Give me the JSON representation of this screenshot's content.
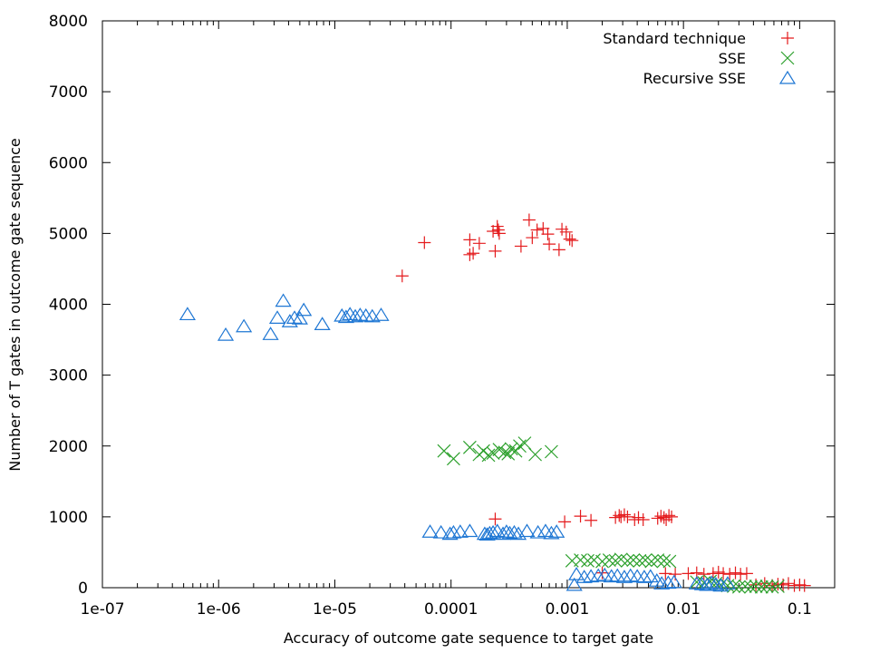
{
  "chart_data": {
    "type": "scatter",
    "title": "",
    "xlabel": "Accuracy of outcome gate sequence to target gate",
    "ylabel": "Number of T gates in outcome gate sequence",
    "xscale": "log",
    "xlim": [
      1e-07,
      0.2
    ],
    "ylim": [
      0,
      8000
    ],
    "x_ticks": [
      {
        "value": 1e-07,
        "label": "1e-07"
      },
      {
        "value": 1e-06,
        "label": "1e-06"
      },
      {
        "value": 1e-05,
        "label": "1e-05"
      },
      {
        "value": 0.0001,
        "label": "0.0001"
      },
      {
        "value": 0.001,
        "label": "0.001"
      },
      {
        "value": 0.01,
        "label": "0.01"
      },
      {
        "value": 0.1,
        "label": "0.1"
      }
    ],
    "y_ticks": [
      {
        "value": 0,
        "label": "0"
      },
      {
        "value": 1000,
        "label": "1000"
      },
      {
        "value": 2000,
        "label": "2000"
      },
      {
        "value": 3000,
        "label": "3000"
      },
      {
        "value": 4000,
        "label": "4000"
      },
      {
        "value": 5000,
        "label": "5000"
      },
      {
        "value": 6000,
        "label": "6000"
      },
      {
        "value": 7000,
        "label": "7000"
      },
      {
        "value": 8000,
        "label": "8000"
      }
    ],
    "legend_position": "top-right",
    "grid": false,
    "series": [
      {
        "name": "Standard technique",
        "marker": "plus",
        "color": "#e41a1c",
        "points": [
          [
            3.8e-05,
            4400
          ],
          [
            5.9e-05,
            4870
          ],
          [
            0.000145,
            4700
          ],
          [
            0.000155,
            4720
          ],
          [
            0.000145,
            4910
          ],
          [
            0.000175,
            4860
          ],
          [
            0.00023,
            5030
          ],
          [
            0.00024,
            4750
          ],
          [
            0.00025,
            5100
          ],
          [
            0.000255,
            5050
          ],
          [
            0.00026,
            5000
          ],
          [
            0.0004,
            4820
          ],
          [
            0.00047,
            5190
          ],
          [
            0.0005,
            4940
          ],
          [
            0.00055,
            5050
          ],
          [
            0.00062,
            5070
          ],
          [
            0.00068,
            4990
          ],
          [
            0.0007,
            4850
          ],
          [
            0.00085,
            4770
          ],
          [
            0.0009,
            5060
          ],
          [
            0.00098,
            5020
          ],
          [
            0.00105,
            4920
          ],
          [
            0.0011,
            4900
          ],
          [
            0.00024,
            970
          ],
          [
            0.00095,
            930
          ],
          [
            0.0013,
            1010
          ],
          [
            0.0016,
            950
          ],
          [
            0.0026,
            990
          ],
          [
            0.0028,
            1020
          ],
          [
            0.0029,
            1000
          ],
          [
            0.0031,
            1030
          ],
          [
            0.0033,
            1000
          ],
          [
            0.0038,
            960
          ],
          [
            0.0041,
            990
          ],
          [
            0.0045,
            960
          ],
          [
            0.006,
            980
          ],
          [
            0.0064,
            1010
          ],
          [
            0.0068,
            990
          ],
          [
            0.0071,
            960
          ],
          [
            0.0075,
            1020
          ],
          [
            0.0079,
            1000
          ],
          [
            0.002,
            210
          ],
          [
            0.007,
            200
          ],
          [
            0.0085,
            190
          ],
          [
            0.011,
            200
          ],
          [
            0.013,
            210
          ],
          [
            0.015,
            190
          ],
          [
            0.018,
            200
          ],
          [
            0.02,
            220
          ],
          [
            0.022,
            200
          ],
          [
            0.025,
            190
          ],
          [
            0.028,
            210
          ],
          [
            0.031,
            190
          ],
          [
            0.035,
            200
          ],
          [
            0.042,
            40
          ],
          [
            0.05,
            60
          ],
          [
            0.058,
            30
          ],
          [
            0.065,
            50
          ],
          [
            0.072,
            40
          ],
          [
            0.08,
            60
          ],
          [
            0.09,
            30
          ],
          [
            0.1,
            40
          ],
          [
            0.11,
            30
          ]
        ]
      },
      {
        "name": "SSE",
        "marker": "cross",
        "color": "#2ca02c",
        "points": [
          [
            8.7e-05,
            1930
          ],
          [
            0.000105,
            1820
          ],
          [
            0.000145,
            1980
          ],
          [
            0.000175,
            1880
          ],
          [
            0.00019,
            1930
          ],
          [
            0.00021,
            1870
          ],
          [
            0.00023,
            1900
          ],
          [
            0.00026,
            1950
          ],
          [
            0.00029,
            1910
          ],
          [
            0.00031,
            1890
          ],
          [
            0.00033,
            1960
          ],
          [
            0.00036,
            1930
          ],
          [
            0.00039,
            2000
          ],
          [
            0.00043,
            2040
          ],
          [
            0.00053,
            1880
          ],
          [
            0.00073,
            1920
          ],
          [
            0.0011,
            380
          ],
          [
            0.0013,
            390
          ],
          [
            0.0015,
            380
          ],
          [
            0.0017,
            390
          ],
          [
            0.002,
            370
          ],
          [
            0.0023,
            390
          ],
          [
            0.0026,
            380
          ],
          [
            0.0029,
            400
          ],
          [
            0.0033,
            380
          ],
          [
            0.0037,
            390
          ],
          [
            0.0042,
            380
          ],
          [
            0.0047,
            390
          ],
          [
            0.0053,
            370
          ],
          [
            0.006,
            390
          ],
          [
            0.0068,
            380
          ],
          [
            0.0076,
            370
          ],
          [
            0.013,
            80
          ],
          [
            0.015,
            70
          ],
          [
            0.017,
            90
          ],
          [
            0.019,
            60
          ],
          [
            0.021,
            40
          ],
          [
            0.024,
            30
          ],
          [
            0.027,
            20
          ],
          [
            0.03,
            10
          ],
          [
            0.034,
            20
          ],
          [
            0.038,
            10
          ],
          [
            0.042,
            20
          ],
          [
            0.047,
            10
          ],
          [
            0.052,
            20
          ],
          [
            0.058,
            10
          ],
          [
            0.065,
            20
          ]
        ]
      },
      {
        "name": "Recursive SSE",
        "marker": "triangle",
        "color": "#1f77d4",
        "points": [
          [
            5.4e-07,
            3860
          ],
          [
            1.15e-06,
            3570
          ],
          [
            1.65e-06,
            3690
          ],
          [
            2.8e-06,
            3580
          ],
          [
            3.2e-06,
            3810
          ],
          [
            3.6e-06,
            4050
          ],
          [
            4.1e-06,
            3760
          ],
          [
            4.5e-06,
            3810
          ],
          [
            5e-06,
            3800
          ],
          [
            5.4e-06,
            3920
          ],
          [
            7.8e-06,
            3720
          ],
          [
            1.15e-05,
            3840
          ],
          [
            1.25e-05,
            3820
          ],
          [
            1.35e-05,
            3860
          ],
          [
            1.5e-05,
            3830
          ],
          [
            1.65e-05,
            3850
          ],
          [
            1.85e-05,
            3840
          ],
          [
            2.1e-05,
            3830
          ],
          [
            2.5e-05,
            3850
          ],
          [
            6.6e-05,
            790
          ],
          [
            8.2e-05,
            780
          ],
          [
            9.8e-05,
            760
          ],
          [
            0.000105,
            780
          ],
          [
            0.00012,
            790
          ],
          [
            0.000145,
            800
          ],
          [
            0.000195,
            760
          ],
          [
            0.000205,
            750
          ],
          [
            0.000215,
            770
          ],
          [
            0.00023,
            780
          ],
          [
            0.00025,
            800
          ],
          [
            0.00028,
            760
          ],
          [
            0.0003,
            790
          ],
          [
            0.00032,
            770
          ],
          [
            0.00035,
            780
          ],
          [
            0.00038,
            760
          ],
          [
            0.00045,
            800
          ],
          [
            0.00056,
            780
          ],
          [
            0.00065,
            800
          ],
          [
            0.00073,
            770
          ],
          [
            0.00081,
            790
          ],
          [
            0.00115,
            40
          ],
          [
            0.0012,
            190
          ],
          [
            0.0014,
            150
          ],
          [
            0.0016,
            160
          ],
          [
            0.00185,
            170
          ],
          [
            0.0021,
            180
          ],
          [
            0.0024,
            160
          ],
          [
            0.0027,
            170
          ],
          [
            0.0031,
            150
          ],
          [
            0.0035,
            170
          ],
          [
            0.004,
            160
          ],
          [
            0.0046,
            150
          ],
          [
            0.0052,
            160
          ],
          [
            0.0059,
            100
          ],
          [
            0.0065,
            60
          ],
          [
            0.0074,
            70
          ],
          [
            0.0083,
            80
          ],
          [
            0.013,
            60
          ],
          [
            0.0145,
            50
          ],
          [
            0.016,
            40
          ],
          [
            0.0175,
            70
          ],
          [
            0.019,
            50
          ],
          [
            0.021,
            30
          ],
          [
            0.024,
            60
          ]
        ]
      }
    ]
  }
}
